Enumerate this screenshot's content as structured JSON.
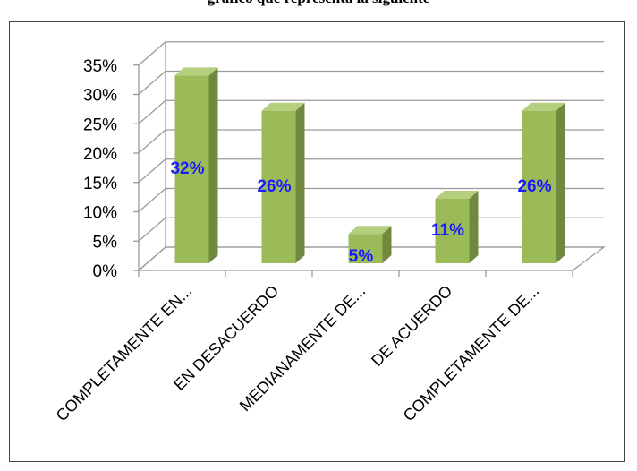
{
  "header": {
    "cut_title": "gráfico que representa la siguiente"
  },
  "chart_data": {
    "type": "bar",
    "categories": [
      "COMPLETAMENTE EN...",
      "EN DESACUERDO",
      "MEDIANAMENTE DE...",
      "DE ACUERDO",
      "COMPLETAMENTE DE..."
    ],
    "values": [
      32,
      26,
      5,
      11,
      26
    ],
    "data_labels": [
      "32%",
      "26%",
      "5%",
      "11%",
      "26%"
    ],
    "y_ticks": [
      "0%",
      "5%",
      "10%",
      "15%",
      "20%",
      "25%",
      "30%",
      "35%"
    ],
    "ylim": [
      0,
      35
    ],
    "grid": true,
    "style": "3d-column",
    "colors": {
      "bar_front": "#9bbb59",
      "bar_side": "#71893f",
      "bar_top": "#b5cf7f",
      "label": "#1a1aff",
      "grid": "#9a9a9a"
    }
  }
}
